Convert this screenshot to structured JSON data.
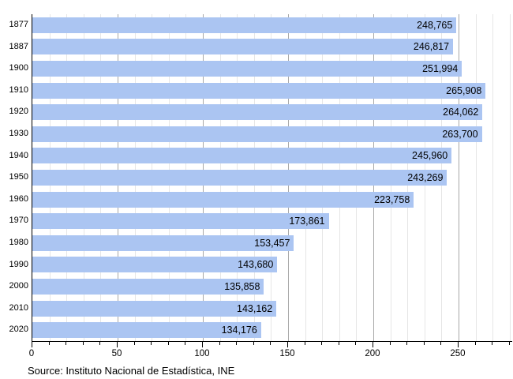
{
  "chart_data": {
    "type": "bar",
    "orientation": "horizontal",
    "title": "",
    "xlabel": "",
    "ylabel": "",
    "categories": [
      "1877",
      "1887",
      "1900",
      "1910",
      "1920",
      "1930",
      "1940",
      "1950",
      "1960",
      "1970",
      "1980",
      "1990",
      "2000",
      "2010",
      "2020"
    ],
    "values": [
      248765,
      246817,
      251994,
      265908,
      264062,
      263700,
      245960,
      243269,
      223758,
      173861,
      153457,
      143680,
      135858,
      143162,
      134176
    ],
    "x_ticks": [
      0,
      50,
      100,
      150,
      200,
      250
    ],
    "x_minor_step": 10,
    "xlim": [
      0,
      281.5
    ],
    "x_unit_divisor": 1000,
    "grid": true,
    "legend": null,
    "source": "Source: Instituto Nacional de Estadística, INE",
    "colors": {
      "bar": "#abc5f2",
      "minor_grid": "#e6e6e6",
      "major_grid": "#a8a8a8",
      "axis": "#000000",
      "value_text": "#000000"
    }
  }
}
